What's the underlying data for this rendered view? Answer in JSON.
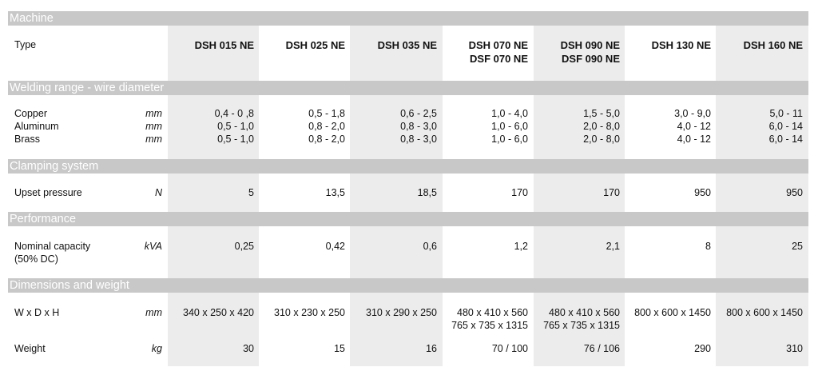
{
  "sections": {
    "machine": "Machine",
    "welding": "Welding range -  wire diameter",
    "clamping": "Clamping system",
    "performance": "Performance",
    "dimensions": "Dimensions and weight"
  },
  "type_label": "Type",
  "models": [
    "DSH 015 NE",
    "DSH 025 NE",
    "DSH 035 NE",
    "DSH 070 NE\nDSF 070 NE",
    "DSH 090 NE\nDSF 090 NE",
    "DSH 130 NE",
    "DSH 160 NE"
  ],
  "rows": {
    "welding": {
      "labels": [
        "Copper",
        "Aluminum",
        "Brass"
      ],
      "units": [
        "mm",
        "mm",
        "mm"
      ],
      "values": [
        [
          "0,4 - 0 ,8",
          "0,5 - 1,0",
          "0,5 - 1,0"
        ],
        [
          "0,5 - 1,8",
          "0,8 - 2,0",
          "0,8 - 2,0"
        ],
        [
          "0,6 - 2,5",
          "0,8 - 3,0",
          "0,8 - 3,0"
        ],
        [
          "1,0 - 4,0",
          "1,0 - 6,0",
          "1,0 - 6,0"
        ],
        [
          "1,5 - 5,0",
          "2,0 - 8,0",
          "2,0 - 8,0"
        ],
        [
          "3,0 - 9,0",
          "4,0 - 12",
          "4,0 - 12"
        ],
        [
          "5,0 - 11",
          "6,0 - 14",
          "6,0 - 14"
        ]
      ]
    },
    "upset": {
      "label": "Upset pressure",
      "unit": "N",
      "values": [
        "5",
        "13,5",
        "18,5",
        "170",
        "170",
        "950",
        "950"
      ]
    },
    "capacity": {
      "label": "Nominal capacity\n(50% DC)",
      "unit": "kVA",
      "values": [
        "0,25",
        "0,42",
        "0,6",
        "1,2",
        "2,1",
        "8",
        "25"
      ]
    },
    "dims": {
      "label": "W x D x H",
      "unit": "mm",
      "values": [
        "340 x 250 x 420",
        "310 x 230 x 250",
        "310 x 290 x 250",
        "480 x 410 x 560\n765 x 735 x 1315",
        "480 x 410 x 560\n765 x 735 x 1315",
        "800 x 600 x 1450",
        "800 x 600 x 1450"
      ]
    },
    "weight": {
      "label": "Weight",
      "unit": "kg",
      "values": [
        "30",
        "15",
        "16",
        "70 / 100",
        "76 / 106",
        "290",
        "310"
      ]
    }
  }
}
